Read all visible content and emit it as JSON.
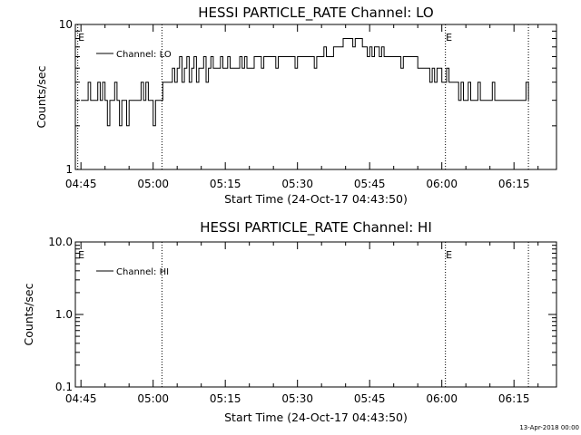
{
  "footer": {
    "timestamp": "13-Apr-2018 00:00"
  },
  "chart_data": [
    {
      "type": "line",
      "title": "HESSI PARTICLE_RATE Channel: LO",
      "xlabel": "Start Time (24-Oct-17 04:43:50)",
      "ylabel": "Counts/sec",
      "yscale": "log",
      "ylim": [
        1,
        10
      ],
      "xlim_minutes": [
        "04:43:50",
        "06:23:50"
      ],
      "yticks": [
        "1",
        "10"
      ],
      "xticks": [
        "04:45",
        "05:00",
        "05:15",
        "05:30",
        "05:45",
        "06:00",
        "06:15"
      ],
      "legend": {
        "position": "top-left",
        "entries": [
          "Channel: LO"
        ]
      },
      "vlines": [
        "04:44:20",
        "05:01:50",
        "06:00:45",
        "06:18:00"
      ],
      "flags": [
        {
          "text": "E",
          "at": "04:44:20"
        },
        {
          "text": "E",
          "at": "06:00:45"
        }
      ],
      "series": [
        {
          "name": "Channel: LO",
          "values": [
            [
              "04:45:00",
              3
            ],
            [
              "04:46:00",
              3
            ],
            [
              "04:46:30",
              4
            ],
            [
              "04:47:00",
              3
            ],
            [
              "04:48:00",
              3
            ],
            [
              "04:48:30",
              4
            ],
            [
              "04:49:00",
              3
            ],
            [
              "04:49:30",
              4
            ],
            [
              "04:50:00",
              3
            ],
            [
              "04:50:30",
              2
            ],
            [
              "04:51:00",
              3
            ],
            [
              "04:51:30",
              3
            ],
            [
              "04:52:00",
              4
            ],
            [
              "04:52:30",
              3
            ],
            [
              "04:53:00",
              2
            ],
            [
              "04:53:30",
              3
            ],
            [
              "04:54:00",
              3
            ],
            [
              "04:54:30",
              2
            ],
            [
              "04:55:00",
              3
            ],
            [
              "04:56:00",
              3
            ],
            [
              "04:57:00",
              3
            ],
            [
              "04:57:30",
              4
            ],
            [
              "04:58:00",
              3
            ],
            [
              "04:58:30",
              4
            ],
            [
              "04:59:00",
              3
            ],
            [
              "04:59:30",
              3
            ],
            [
              "05:00:00",
              2
            ],
            [
              "05:00:30",
              3
            ],
            [
              "05:01:00",
              3
            ],
            [
              "05:02:00",
              4
            ],
            [
              "05:03:00",
              4
            ],
            [
              "05:04:00",
              5
            ],
            [
              "05:04:30",
              4
            ],
            [
              "05:05:00",
              5
            ],
            [
              "05:05:30",
              6
            ],
            [
              "05:06:00",
              4
            ],
            [
              "05:06:30",
              5
            ],
            [
              "05:07:00",
              6
            ],
            [
              "05:07:30",
              4
            ],
            [
              "05:08:00",
              5
            ],
            [
              "05:08:30",
              6
            ],
            [
              "05:09:00",
              4
            ],
            [
              "05:09:30",
              5
            ],
            [
              "05:10:00",
              5
            ],
            [
              "05:10:30",
              6
            ],
            [
              "05:11:00",
              4
            ],
            [
              "05:11:30",
              5
            ],
            [
              "05:12:00",
              6
            ],
            [
              "05:12:30",
              5
            ],
            [
              "05:13:00",
              5
            ],
            [
              "05:14:00",
              6
            ],
            [
              "05:14:30",
              5
            ],
            [
              "05:15:00",
              5
            ],
            [
              "05:15:30",
              6
            ],
            [
              "05:16:00",
              5
            ],
            [
              "05:17:00",
              5
            ],
            [
              "05:18:00",
              6
            ],
            [
              "05:18:30",
              5
            ],
            [
              "05:19:00",
              6
            ],
            [
              "05:19:30",
              5
            ],
            [
              "05:20:00",
              5
            ],
            [
              "05:21:00",
              6
            ],
            [
              "05:22:00",
              6
            ],
            [
              "05:22:30",
              5
            ],
            [
              "05:23:00",
              6
            ],
            [
              "05:24:00",
              6
            ],
            [
              "05:25:00",
              6
            ],
            [
              "05:25:30",
              5
            ],
            [
              "05:26:00",
              6
            ],
            [
              "05:27:00",
              6
            ],
            [
              "05:28:00",
              6
            ],
            [
              "05:29:00",
              6
            ],
            [
              "05:29:30",
              5
            ],
            [
              "05:30:00",
              6
            ],
            [
              "05:31:00",
              6
            ],
            [
              "05:32:00",
              6
            ],
            [
              "05:33:00",
              6
            ],
            [
              "05:33:30",
              5
            ],
            [
              "05:34:00",
              6
            ],
            [
              "05:35:00",
              6
            ],
            [
              "05:35:30",
              7
            ],
            [
              "05:36:00",
              6
            ],
            [
              "05:37:00",
              6
            ],
            [
              "05:37:30",
              7
            ],
            [
              "05:38:00",
              7
            ],
            [
              "05:39:00",
              7
            ],
            [
              "05:39:30",
              8
            ],
            [
              "05:40:00",
              8
            ],
            [
              "05:41:00",
              8
            ],
            [
              "05:41:30",
              7
            ],
            [
              "05:42:00",
              8
            ],
            [
              "05:43:00",
              8
            ],
            [
              "05:43:30",
              7
            ],
            [
              "05:44:00",
              7
            ],
            [
              "05:44:30",
              6
            ],
            [
              "05:45:00",
              7
            ],
            [
              "05:45:30",
              6
            ],
            [
              "05:46:00",
              7
            ],
            [
              "05:47:00",
              6
            ],
            [
              "05:47:30",
              7
            ],
            [
              "05:48:00",
              6
            ],
            [
              "05:49:00",
              6
            ],
            [
              "05:50:00",
              6
            ],
            [
              "05:51:00",
              6
            ],
            [
              "05:51:30",
              5
            ],
            [
              "05:52:00",
              6
            ],
            [
              "05:53:00",
              6
            ],
            [
              "05:54:00",
              6
            ],
            [
              "05:55:00",
              5
            ],
            [
              "05:56:00",
              5
            ],
            [
              "05:57:00",
              5
            ],
            [
              "05:57:30",
              4
            ],
            [
              "05:58:00",
              5
            ],
            [
              "05:58:30",
              4
            ],
            [
              "05:59:00",
              5
            ],
            [
              "06:00:00",
              4
            ],
            [
              "06:00:30",
              4
            ],
            [
              "06:01:00",
              5
            ],
            [
              "06:01:30",
              4
            ],
            [
              "06:02:00",
              4
            ],
            [
              "06:03:00",
              4
            ],
            [
              "06:03:30",
              3
            ],
            [
              "06:04:00",
              4
            ],
            [
              "06:04:30",
              3
            ],
            [
              "06:05:00",
              3
            ],
            [
              "06:05:30",
              4
            ],
            [
              "06:06:00",
              3
            ],
            [
              "06:07:00",
              3
            ],
            [
              "06:07:30",
              4
            ],
            [
              "06:08:00",
              3
            ],
            [
              "06:09:00",
              3
            ],
            [
              "06:10:00",
              3
            ],
            [
              "06:10:30",
              4
            ],
            [
              "06:11:00",
              3
            ],
            [
              "06:12:00",
              3
            ],
            [
              "06:13:00",
              3
            ],
            [
              "06:14:00",
              3
            ],
            [
              "06:15:00",
              3
            ],
            [
              "06:16:00",
              3
            ],
            [
              "06:17:00",
              3
            ],
            [
              "06:17:30",
              4
            ],
            [
              "06:18:00",
              3
            ]
          ]
        }
      ]
    },
    {
      "type": "line",
      "title": "HESSI PARTICLE_RATE Channel: HI",
      "xlabel": "Start Time (24-Oct-17 04:43:50)",
      "ylabel": "Counts/sec",
      "yscale": "log",
      "ylim": [
        0.1,
        10
      ],
      "xlim_minutes": [
        "04:43:50",
        "06:23:50"
      ],
      "yticks": [
        "0.1",
        "1.0",
        "10.0"
      ],
      "xticks": [
        "04:45",
        "05:00",
        "05:15",
        "05:30",
        "05:45",
        "06:00",
        "06:15"
      ],
      "legend": {
        "position": "top-left",
        "entries": [
          "Channel: HI"
        ]
      },
      "vlines": [
        "05:01:50",
        "06:00:45",
        "06:18:00"
      ],
      "flags": [
        {
          "text": "E",
          "at": "04:44:20"
        },
        {
          "text": "E",
          "at": "06:00:45"
        }
      ],
      "series": [
        {
          "name": "Channel: HI",
          "values": []
        }
      ]
    }
  ]
}
